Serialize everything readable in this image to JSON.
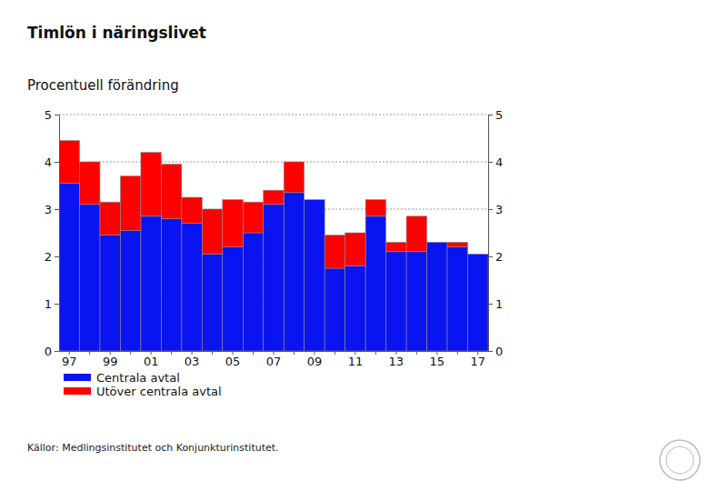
{
  "chart_data": {
    "type": "bar",
    "title": "Timlön i näringslivet",
    "subtitle": "Procentuell förändring",
    "source": "Källor: Medlingsinstitutet och Konjunkturinstitutet.",
    "stacked": true,
    "grid": true,
    "legend": "bottom",
    "categories": [
      "97",
      null,
      "99",
      null,
      "01",
      null,
      "03",
      null,
      "05",
      null,
      "07",
      null,
      "09",
      null,
      "11",
      null,
      "13",
      null,
      "15",
      null,
      "17"
    ],
    "series": [
      {
        "name": "Centrala avtal",
        "color": "#0a14f0",
        "values": [
          3.55,
          3.1,
          2.45,
          2.55,
          2.85,
          2.8,
          2.7,
          2.05,
          2.2,
          2.5,
          3.1,
          3.35,
          3.2,
          1.75,
          1.8,
          2.85,
          2.1,
          2.1,
          2.3,
          2.2,
          2.05
        ]
      },
      {
        "name": "Utöver centrala avtal",
        "color": "#ff0000",
        "values": [
          0.9,
          0.9,
          0.7,
          1.15,
          1.35,
          1.15,
          0.55,
          0.95,
          1.0,
          0.65,
          0.3,
          0.65,
          0,
          0.7,
          0.7,
          0.35,
          0.2,
          0.75,
          0,
          0.1,
          0
        ]
      }
    ],
    "ylim": [
      0,
      5
    ],
    "yticks": [
      0,
      1,
      2,
      3,
      4,
      5
    ]
  }
}
